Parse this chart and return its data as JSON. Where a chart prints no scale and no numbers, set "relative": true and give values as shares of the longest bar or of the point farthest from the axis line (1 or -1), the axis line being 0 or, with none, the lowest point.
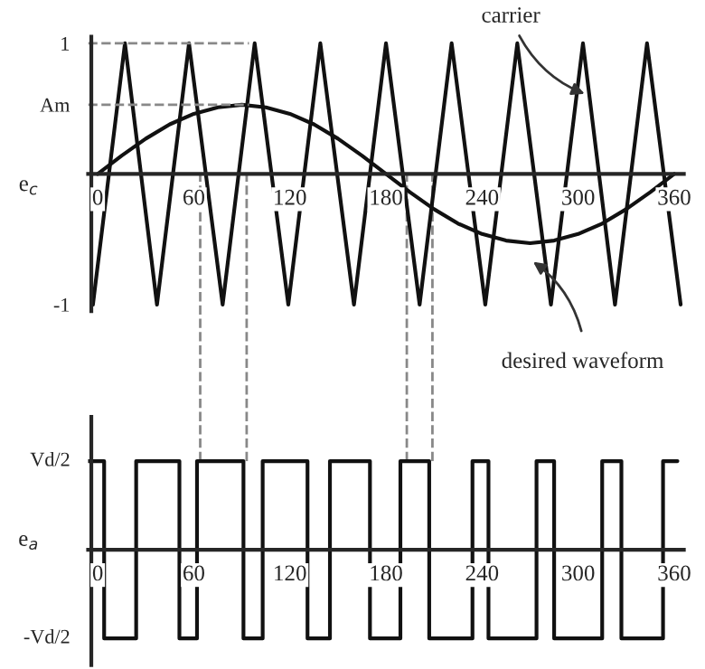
{
  "chart_data": [
    {
      "type": "line",
      "ylabel": "e$_{c}$",
      "xlim": [
        -6,
        366
      ],
      "ylim": [
        -1.05,
        1.05
      ],
      "xticks": [
        0,
        60,
        120,
        180,
        240,
        300,
        360
      ],
      "yticks": [
        1,
        {
          "value": 0.53,
          "label": "Am"
        },
        -1
      ],
      "grid": false,
      "legend": false,
      "line_style": "solid",
      "marker": "none",
      "series": [
        {
          "color": "#111111",
          "x": [
            -3,
            17,
            37,
            57,
            78,
            98,
            119,
            139,
            160,
            180,
            201,
            221,
            242,
            262,
            283,
            303,
            323,
            343,
            364
          ],
          "values": [
            -1,
            1,
            -1,
            1,
            -1,
            1,
            -1,
            1,
            -1,
            1,
            -1,
            1,
            -1,
            1,
            -1,
            1,
            -1,
            1,
            -1
          ]
        },
        {
          "color": "#111111",
          "x": [
            0,
            15,
            30,
            45,
            60,
            75,
            90,
            105,
            120,
            135,
            150,
            165,
            180,
            195,
            210,
            225,
            240,
            255,
            270,
            285,
            300,
            315,
            330,
            345,
            360
          ],
          "values": [
            0,
            0.14,
            0.27,
            0.38,
            0.46,
            0.51,
            0.53,
            0.51,
            0.46,
            0.38,
            0.27,
            0.14,
            0,
            -0.14,
            -0.27,
            -0.38,
            -0.46,
            -0.51,
            -0.53,
            -0.51,
            -0.46,
            -0.38,
            -0.27,
            -0.14,
            0
          ]
        }
      ],
      "ref_lines": [
        {
          "axis": "x",
          "value": 64,
          "color": "#888888",
          "line_style": "dashed"
        },
        {
          "axis": "x",
          "value": 93,
          "color": "#888888",
          "line_style": "dashed"
        },
        {
          "axis": "x",
          "value": 193,
          "color": "#888888",
          "line_style": "dashed"
        },
        {
          "axis": "x",
          "value": 209,
          "color": "#888888",
          "line_style": "dashed"
        },
        {
          "axis": "y",
          "value": 1,
          "color": "#888888",
          "line_style": "dashed"
        },
        {
          "axis": "y",
          "value": 0.53,
          "color": "#888888",
          "line_style": "dashed"
        }
      ],
      "annotations": [
        {
          "text": "carrier",
          "x": 307,
          "y": 0.6
        },
        "desired waveform"
      ]
    },
    {
      "type": "step",
      "ylabel": "e$_{a}$",
      "relative": true,
      "xlim": [
        -6,
        366
      ],
      "xticks": [
        0,
        60,
        120,
        180,
        240,
        300,
        360
      ],
      "grid": false,
      "legend": false,
      "line_style": "solid",
      "marker": "none",
      "series": [
        {
          "color": "#111111",
          "x": [
            -6,
            4,
            24,
            51,
            62,
            91,
            103,
            131,
            145,
            170,
            189,
            207,
            234,
            244,
            274,
            285,
            315,
            327,
            353,
            362
          ],
          "values": [
            1,
            -1,
            1,
            -1,
            1,
            -1,
            1,
            -1,
            1,
            -1,
            1,
            -1,
            1,
            -1,
            1,
            -1,
            1,
            -1,
            1,
            1
          ]
        }
      ],
      "annotations": [
        "Vd/2",
        "-Vd/2"
      ]
    }
  ]
}
